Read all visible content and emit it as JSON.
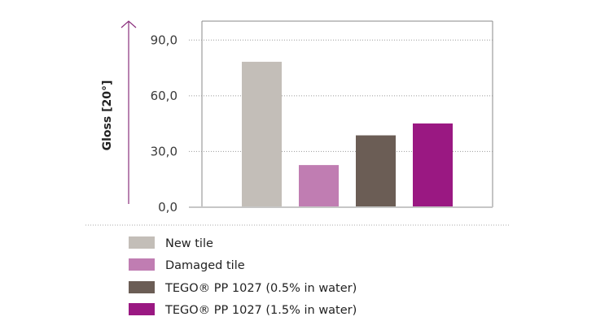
{
  "chart_data": {
    "type": "bar",
    "title": "",
    "xlabel": "",
    "ylabel": "Gloss [20°]",
    "ylim": [
      0,
      90
    ],
    "yticks": [
      "0,0",
      "30,0",
      "60,0",
      "90,0"
    ],
    "ytick_values": [
      0,
      30,
      60,
      90
    ],
    "grid": "horizontal dotted",
    "legend_position": "bottom",
    "categories": [
      "New tile",
      "Damaged tile",
      "TEGO® PP 1027 (0.5% in water)",
      "TEGO® PP 1027 (1.5% in water)"
    ],
    "values": [
      78.3,
      22.7,
      38.7,
      45.1
    ],
    "colors": [
      "#c3beb8",
      "#c07db2",
      "#6b5d55",
      "#9a1882"
    ],
    "axis_arrow_color": "#8a2f7c"
  }
}
